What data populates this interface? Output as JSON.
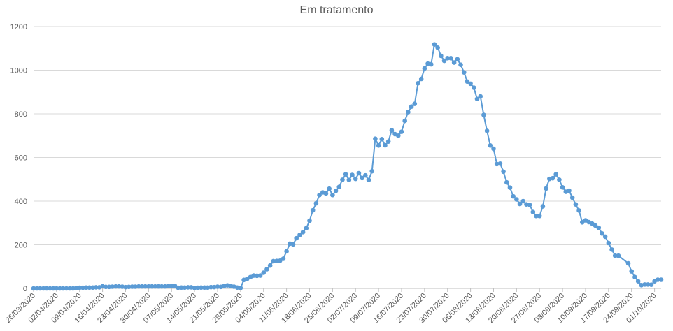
{
  "chart_data": {
    "type": "line",
    "title": "Em tratamento",
    "xlabel": "",
    "ylabel": "",
    "ylim": [
      0,
      1200
    ],
    "yticks": [
      0,
      200,
      400,
      600,
      800,
      1000,
      1200
    ],
    "grid": true,
    "legend": "none",
    "color": "#5B9BD5",
    "x_tick_labels": [
      "26/03/2020",
      "02/04/2020",
      "09/04/2020",
      "16/04/2020",
      "23/04/2020",
      "30/04/2020",
      "07/05/2020",
      "14/05/2020",
      "21/05/2020",
      "28/05/2020",
      "04/06/2020",
      "11/06/2020",
      "18/06/2020",
      "25/06/2020",
      "02/07/2020",
      "09/07/2020",
      "16/07/2020",
      "23/07/2020",
      "30/07/2020",
      "06/08/2020",
      "13/08/2020",
      "20/08/2020",
      "27/08/2020",
      "03/09/2020",
      "10/09/2020",
      "17/09/2020",
      "24/09/2020",
      "01/10/2020"
    ],
    "series": [
      {
        "points": [
          [
            "26/03/2020",
            0
          ],
          [
            "27/03/2020",
            0
          ],
          [
            "28/03/2020",
            0
          ],
          [
            "29/03/2020",
            0
          ],
          [
            "30/03/2020",
            0
          ],
          [
            "31/03/2020",
            0
          ],
          [
            "01/04/2020",
            0
          ],
          [
            "02/04/2020",
            0
          ],
          [
            "03/04/2020",
            0
          ],
          [
            "04/04/2020",
            0
          ],
          [
            "05/04/2020",
            0
          ],
          [
            "06/04/2020",
            0
          ],
          [
            "07/04/2020",
            0
          ],
          [
            "08/04/2020",
            2
          ],
          [
            "09/04/2020",
            3
          ],
          [
            "10/04/2020",
            3
          ],
          [
            "11/04/2020",
            4
          ],
          [
            "12/04/2020",
            4
          ],
          [
            "13/04/2020",
            4
          ],
          [
            "14/04/2020",
            5
          ],
          [
            "15/04/2020",
            5
          ],
          [
            "16/04/2020",
            10
          ],
          [
            "17/04/2020",
            7
          ],
          [
            "18/04/2020",
            7
          ],
          [
            "19/04/2020",
            8
          ],
          [
            "20/04/2020",
            9
          ],
          [
            "21/04/2020",
            9
          ],
          [
            "22/04/2020",
            8
          ],
          [
            "23/04/2020",
            6
          ],
          [
            "24/04/2020",
            7
          ],
          [
            "25/04/2020",
            8
          ],
          [
            "26/04/2020",
            8
          ],
          [
            "27/04/2020",
            9
          ],
          [
            "28/04/2020",
            9
          ],
          [
            "29/04/2020",
            9
          ],
          [
            "30/04/2020",
            9
          ],
          [
            "01/05/2020",
            9
          ],
          [
            "02/05/2020",
            9
          ],
          [
            "03/05/2020",
            9
          ],
          [
            "04/05/2020",
            9
          ],
          [
            "05/05/2020",
            9
          ],
          [
            "06/05/2020",
            11
          ],
          [
            "07/05/2020",
            11
          ],
          [
            "08/05/2020",
            12
          ],
          [
            "09/05/2020",
            3
          ],
          [
            "10/05/2020",
            4
          ],
          [
            "11/05/2020",
            4
          ],
          [
            "12/05/2020",
            5
          ],
          [
            "13/05/2020",
            5
          ],
          [
            "14/05/2020",
            2
          ],
          [
            "15/05/2020",
            3
          ],
          [
            "16/05/2020",
            4
          ],
          [
            "17/05/2020",
            4
          ],
          [
            "18/05/2020",
            4
          ],
          [
            "19/05/2020",
            6
          ],
          [
            "20/05/2020",
            6
          ],
          [
            "21/05/2020",
            8
          ],
          [
            "22/05/2020",
            7
          ],
          [
            "23/05/2020",
            11
          ],
          [
            "24/05/2020",
            14
          ],
          [
            "25/05/2020",
            12
          ],
          [
            "26/05/2020",
            8
          ],
          [
            "27/05/2020",
            4
          ],
          [
            "28/05/2020",
            2
          ],
          [
            "29/05/2020",
            39
          ],
          [
            "30/05/2020",
            44
          ],
          [
            "31/05/2020",
            52
          ],
          [
            "01/06/2020",
            59
          ],
          [
            "02/06/2020",
            58
          ],
          [
            "03/06/2020",
            59
          ],
          [
            "04/06/2020",
            72
          ],
          [
            "05/06/2020",
            88
          ],
          [
            "06/06/2020",
            105
          ],
          [
            "07/06/2020",
            125
          ],
          [
            "08/06/2020",
            126
          ],
          [
            "09/06/2020",
            127
          ],
          [
            "10/06/2020",
            136
          ],
          [
            "11/06/2020",
            170
          ],
          [
            "12/06/2020",
            205
          ],
          [
            "13/06/2020",
            202
          ],
          [
            "14/06/2020",
            230
          ],
          [
            "15/06/2020",
            245
          ],
          [
            "16/06/2020",
            258
          ],
          [
            "17/06/2020",
            276
          ],
          [
            "18/06/2020",
            310
          ],
          [
            "19/06/2020",
            358
          ],
          [
            "20/06/2020",
            390
          ],
          [
            "21/06/2020",
            428
          ],
          [
            "22/06/2020",
            440
          ],
          [
            "23/06/2020",
            435
          ],
          [
            "24/06/2020",
            457
          ],
          [
            "25/06/2020",
            428
          ],
          [
            "26/06/2020",
            447
          ],
          [
            "27/06/2020",
            465
          ],
          [
            "28/06/2020",
            498
          ],
          [
            "29/06/2020",
            523
          ],
          [
            "30/06/2020",
            497
          ],
          [
            "01/07/2020",
            520
          ],
          [
            "02/07/2020",
            502
          ],
          [
            "03/07/2020",
            528
          ],
          [
            "04/07/2020",
            506
          ],
          [
            "05/07/2020",
            518
          ],
          [
            "06/07/2020",
            497
          ],
          [
            "07/07/2020",
            537
          ],
          [
            "08/07/2020",
            686
          ],
          [
            "09/07/2020",
            655
          ],
          [
            "10/07/2020",
            684
          ],
          [
            "11/07/2020",
            656
          ],
          [
            "12/07/2020",
            673
          ],
          [
            "13/07/2020",
            725
          ],
          [
            "14/07/2020",
            707
          ],
          [
            "15/07/2020",
            700
          ],
          [
            "16/07/2020",
            718
          ],
          [
            "17/07/2020",
            768
          ],
          [
            "18/07/2020",
            808
          ],
          [
            "19/07/2020",
            833
          ],
          [
            "20/07/2020",
            846
          ],
          [
            "21/07/2020",
            940
          ],
          [
            "22/07/2020",
            960
          ],
          [
            "23/07/2020",
            1008
          ],
          [
            "24/07/2020",
            1030
          ],
          [
            "25/07/2020",
            1027
          ],
          [
            "26/07/2020",
            1118
          ],
          [
            "27/07/2020",
            1103
          ],
          [
            "28/07/2020",
            1066
          ],
          [
            "29/07/2020",
            1043
          ],
          [
            "30/07/2020",
            1055
          ],
          [
            "31/07/2020",
            1055
          ],
          [
            "01/08/2020",
            1035
          ],
          [
            "02/08/2020",
            1050
          ],
          [
            "03/08/2020",
            1025
          ],
          [
            "04/08/2020",
            990
          ],
          [
            "05/08/2020",
            948
          ],
          [
            "06/08/2020",
            938
          ],
          [
            "07/08/2020",
            920
          ],
          [
            "08/08/2020",
            868
          ],
          [
            "09/08/2020",
            880
          ],
          [
            "10/08/2020",
            795
          ],
          [
            "11/08/2020",
            722
          ],
          [
            "12/08/2020",
            655
          ],
          [
            "13/08/2020",
            640
          ],
          [
            "14/08/2020",
            570
          ],
          [
            "15/08/2020",
            572
          ],
          [
            "16/08/2020",
            535
          ],
          [
            "17/08/2020",
            486
          ],
          [
            "18/08/2020",
            462
          ],
          [
            "19/08/2020",
            422
          ],
          [
            "20/08/2020",
            408
          ],
          [
            "21/08/2020",
            387
          ],
          [
            "22/08/2020",
            400
          ],
          [
            "23/08/2020",
            385
          ],
          [
            "24/08/2020",
            383
          ],
          [
            "25/08/2020",
            350
          ],
          [
            "26/08/2020",
            332
          ],
          [
            "27/08/2020",
            332
          ],
          [
            "28/08/2020",
            376
          ],
          [
            "29/08/2020",
            458
          ],
          [
            "30/08/2020",
            502
          ],
          [
            "31/08/2020",
            505
          ],
          [
            "01/09/2020",
            523
          ],
          [
            "02/09/2020",
            498
          ],
          [
            "03/09/2020",
            463
          ],
          [
            "04/09/2020",
            443
          ],
          [
            "05/09/2020",
            448
          ],
          [
            "06/09/2020",
            416
          ],
          [
            "07/09/2020",
            385
          ],
          [
            "08/09/2020",
            357
          ],
          [
            "09/09/2020",
            303
          ],
          [
            "10/09/2020",
            312
          ],
          [
            "11/09/2020",
            304
          ],
          [
            "12/09/2020",
            297
          ],
          [
            "13/09/2020",
            288
          ],
          [
            "14/09/2020",
            278
          ],
          [
            "15/09/2020",
            252
          ],
          [
            "16/09/2020",
            237
          ],
          [
            "17/09/2020",
            208
          ],
          [
            "18/09/2020",
            178
          ],
          [
            "19/09/2020",
            150
          ],
          [
            "20/09/2020",
            150
          ],
          [
            "23/09/2020",
            115
          ],
          [
            "24/09/2020",
            78
          ],
          [
            "25/09/2020",
            52
          ],
          [
            "26/09/2020",
            33
          ],
          [
            "27/09/2020",
            15
          ],
          [
            "28/09/2020",
            18
          ],
          [
            "29/09/2020",
            18
          ],
          [
            "30/09/2020",
            17
          ],
          [
            "01/10/2020",
            33
          ],
          [
            "02/10/2020",
            40
          ],
          [
            "03/10/2020",
            40
          ]
        ]
      }
    ]
  }
}
